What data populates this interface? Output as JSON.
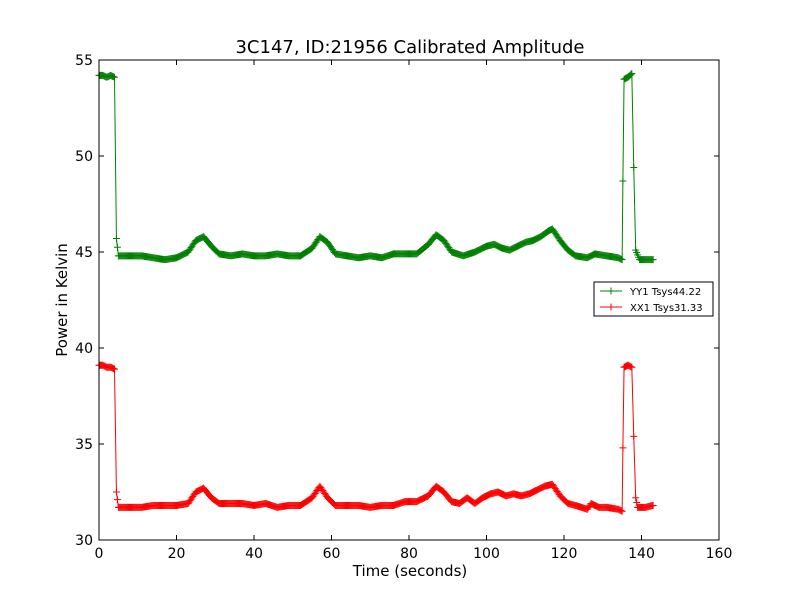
{
  "chart_data": {
    "type": "line",
    "title": "3C147, ID:21956 Calibrated Amplitude",
    "xlabel": "Time (seconds)",
    "ylabel": "Power in Kelvin",
    "xlim": [
      0,
      160
    ],
    "ylim": [
      30,
      55
    ],
    "xticks": [
      "0",
      "20",
      "40",
      "60",
      "80",
      "100",
      "120",
      "140",
      "160"
    ],
    "yticks": [
      "30",
      "35",
      "40",
      "45",
      "50",
      "55"
    ],
    "grid": false,
    "legend_position": "right",
    "series": [
      {
        "name": "YY1 Tsys44.22",
        "color": "#008000",
        "marker": "+",
        "points": [
          [
            0,
            54.2
          ],
          [
            1,
            54.2
          ],
          [
            2,
            54.1
          ],
          [
            3,
            54.2
          ],
          [
            4,
            54.1
          ],
          [
            4.5,
            45.7
          ],
          [
            5,
            44.8
          ],
          [
            8,
            44.8
          ],
          [
            11,
            44.8
          ],
          [
            14,
            44.7
          ],
          [
            17,
            44.6
          ],
          [
            20,
            44.7
          ],
          [
            23,
            45.0
          ],
          [
            25,
            45.6
          ],
          [
            27,
            45.8
          ],
          [
            29,
            45.3
          ],
          [
            31,
            44.9
          ],
          [
            34,
            44.8
          ],
          [
            37,
            44.9
          ],
          [
            40,
            44.8
          ],
          [
            43,
            44.8
          ],
          [
            46,
            44.9
          ],
          [
            49,
            44.8
          ],
          [
            52,
            44.8
          ],
          [
            55,
            45.2
          ],
          [
            57,
            45.8
          ],
          [
            59,
            45.5
          ],
          [
            61,
            44.9
          ],
          [
            64,
            44.8
          ],
          [
            67,
            44.7
          ],
          [
            70,
            44.8
          ],
          [
            73,
            44.7
          ],
          [
            76,
            44.9
          ],
          [
            79,
            44.9
          ],
          [
            82,
            44.9
          ],
          [
            85,
            45.4
          ],
          [
            87,
            45.9
          ],
          [
            89,
            45.6
          ],
          [
            91,
            45.0
          ],
          [
            94,
            44.8
          ],
          [
            97,
            45.0
          ],
          [
            100,
            45.3
          ],
          [
            102,
            45.4
          ],
          [
            104,
            45.2
          ],
          [
            106,
            45.1
          ],
          [
            108,
            45.3
          ],
          [
            110,
            45.5
          ],
          [
            112,
            45.6
          ],
          [
            114,
            45.8
          ],
          [
            116,
            46.1
          ],
          [
            117,
            46.2
          ],
          [
            119,
            45.6
          ],
          [
            121,
            45.1
          ],
          [
            123,
            44.8
          ],
          [
            126,
            44.7
          ],
          [
            128,
            44.9
          ],
          [
            131,
            44.8
          ],
          [
            134,
            44.7
          ],
          [
            135,
            44.6
          ],
          [
            135.2,
            48.7
          ],
          [
            135.5,
            54.0
          ],
          [
            136.5,
            54.1
          ],
          [
            137.5,
            54.3
          ],
          [
            138,
            49.4
          ],
          [
            138.5,
            45.1
          ],
          [
            139.5,
            44.6
          ],
          [
            141,
            44.6
          ],
          [
            143,
            44.6
          ]
        ]
      },
      {
        "name": "XX1 Tsys31.33",
        "color": "#ff0000",
        "marker": "+",
        "points": [
          [
            0,
            39.1
          ],
          [
            1,
            39.1
          ],
          [
            2,
            39.0
          ],
          [
            3,
            39.0
          ],
          [
            4,
            38.9
          ],
          [
            4.5,
            32.5
          ],
          [
            5,
            31.7
          ],
          [
            8,
            31.7
          ],
          [
            11,
            31.7
          ],
          [
            14,
            31.8
          ],
          [
            17,
            31.8
          ],
          [
            20,
            31.8
          ],
          [
            23,
            31.9
          ],
          [
            25,
            32.5
          ],
          [
            27,
            32.7
          ],
          [
            29,
            32.2
          ],
          [
            31,
            31.9
          ],
          [
            34,
            31.9
          ],
          [
            37,
            31.9
          ],
          [
            40,
            31.8
          ],
          [
            43,
            31.9
          ],
          [
            46,
            31.7
          ],
          [
            49,
            31.8
          ],
          [
            52,
            31.8
          ],
          [
            55,
            32.2
          ],
          [
            57,
            32.8
          ],
          [
            59,
            32.2
          ],
          [
            61,
            31.8
          ],
          [
            64,
            31.8
          ],
          [
            67,
            31.8
          ],
          [
            70,
            31.7
          ],
          [
            73,
            31.8
          ],
          [
            76,
            31.8
          ],
          [
            79,
            32.0
          ],
          [
            82,
            32.0
          ],
          [
            85,
            32.3
          ],
          [
            87,
            32.8
          ],
          [
            89,
            32.5
          ],
          [
            91,
            32.0
          ],
          [
            93,
            31.9
          ],
          [
            95,
            32.2
          ],
          [
            97,
            31.9
          ],
          [
            99,
            32.2
          ],
          [
            101,
            32.4
          ],
          [
            103,
            32.5
          ],
          [
            105,
            32.3
          ],
          [
            107,
            32.4
          ],
          [
            109,
            32.3
          ],
          [
            111,
            32.4
          ],
          [
            113,
            32.6
          ],
          [
            115,
            32.8
          ],
          [
            117,
            32.9
          ],
          [
            119,
            32.3
          ],
          [
            121,
            31.9
          ],
          [
            123,
            31.8
          ],
          [
            126,
            31.6
          ],
          [
            127,
            31.9
          ],
          [
            129,
            31.7
          ],
          [
            131,
            31.7
          ],
          [
            134,
            31.6
          ],
          [
            135,
            31.5
          ],
          [
            135.2,
            34.8
          ],
          [
            135.5,
            39.0
          ],
          [
            136.5,
            39.1
          ],
          [
            137.5,
            39.0
          ],
          [
            138,
            35.4
          ],
          [
            138.5,
            32.2
          ],
          [
            139,
            31.7
          ],
          [
            141,
            31.7
          ],
          [
            143,
            31.8
          ]
        ]
      }
    ]
  }
}
